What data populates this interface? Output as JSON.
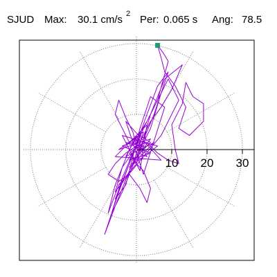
{
  "header": {
    "station": "SJUD",
    "max_label": "Max:",
    "max_value": "30.1 cm/s",
    "max_exponent": "2",
    "per_label": "Per:",
    "per_value": "0.065 s",
    "ang_label": "Ang:",
    "ang_value": "78.5"
  },
  "chart_data": {
    "type": "polar-orbit",
    "title": "SJUD Max: 30.1 cm/s2 Per: 0.065 s Ang: 78.5",
    "radial_ticks": [
      10,
      20,
      30
    ],
    "radial_tick_labels": [
      "10",
      "20",
      "30"
    ],
    "rmax": 32,
    "spoke_interval_deg": 30,
    "grid": true,
    "series_color": "#9400D3",
    "marker_color": "#1A9E6E",
    "max_point": {
      "x": 6.0,
      "y": 29.5
    },
    "trace": [
      [
        -1,
        0
      ],
      [
        2,
        1
      ],
      [
        -3,
        2
      ],
      [
        4,
        -1
      ],
      [
        -2,
        -3
      ],
      [
        1,
        3
      ],
      [
        -4,
        1
      ],
      [
        3,
        -2
      ],
      [
        0,
        4
      ],
      [
        -3,
        -2
      ],
      [
        5,
        2
      ],
      [
        -1,
        -4
      ],
      [
        2,
        5
      ],
      [
        -5,
        0
      ],
      [
        4,
        3
      ],
      [
        -2,
        -5
      ],
      [
        6,
        1
      ],
      [
        -4,
        4
      ],
      [
        1,
        -6
      ],
      [
        3,
        7
      ],
      [
        -6,
        -2
      ],
      [
        7,
        -3
      ],
      [
        -3,
        8
      ],
      [
        2,
        -7
      ],
      [
        8,
        12
      ],
      [
        4,
        15
      ],
      [
        1,
        6
      ],
      [
        -3,
        -10
      ],
      [
        -6,
        -14
      ],
      [
        -2,
        -4
      ],
      [
        3,
        10
      ],
      [
        6,
        18
      ],
      [
        9,
        22
      ],
      [
        5,
        10
      ],
      [
        0,
        -2
      ],
      [
        -4,
        -12
      ],
      [
        -7,
        -18
      ],
      [
        -4,
        -8
      ],
      [
        2,
        6
      ],
      [
        7,
        16
      ],
      [
        4,
        6
      ],
      [
        -2,
        -6
      ],
      [
        -6,
        -16
      ],
      [
        -9,
        -24
      ],
      [
        -5,
        -12
      ],
      [
        1,
        4
      ],
      [
        6,
        14
      ],
      [
        9,
        20
      ],
      [
        12,
        14
      ],
      [
        7,
        4
      ],
      [
        2,
        -2
      ],
      [
        -3,
        -8
      ],
      [
        -6,
        -12
      ],
      [
        -4,
        -5
      ],
      [
        1,
        2
      ],
      [
        4,
        8
      ],
      [
        7,
        12
      ],
      [
        10,
        17
      ],
      [
        13,
        24
      ],
      [
        8,
        20
      ],
      [
        4,
        10
      ],
      [
        0,
        -4
      ],
      [
        -5,
        -10
      ],
      [
        -8,
        -18
      ],
      [
        -6,
        -10
      ],
      [
        -2,
        0
      ],
      [
        3,
        8
      ],
      [
        6,
        14
      ],
      [
        9,
        25
      ],
      [
        7.5,
        27.5
      ],
      [
        6,
        29.5
      ],
      [
        7,
        26
      ],
      [
        8,
        22
      ],
      [
        11,
        18
      ],
      [
        14,
        12
      ],
      [
        12,
        6
      ],
      [
        15,
        4
      ],
      [
        19,
        8
      ],
      [
        19,
        13
      ],
      [
        16,
        15
      ],
      [
        14,
        19
      ],
      [
        13,
        13
      ],
      [
        10,
        7
      ],
      [
        11,
        0
      ],
      [
        12,
        -4
      ],
      [
        9,
        -3
      ],
      [
        6,
        -1
      ],
      [
        3,
        2
      ],
      [
        0,
        1
      ],
      [
        -3,
        -1
      ],
      [
        -6,
        -4
      ],
      [
        -8,
        -7
      ],
      [
        -5,
        -9
      ],
      [
        -2,
        -7
      ],
      [
        1,
        -11
      ],
      [
        3,
        -15
      ],
      [
        4,
        -11
      ],
      [
        2,
        -6
      ],
      [
        -1,
        -3
      ],
      [
        2,
        0
      ],
      [
        4,
        2
      ],
      [
        1,
        4
      ],
      [
        -2,
        2
      ],
      [
        -4,
        6
      ],
      [
        -6,
        10
      ],
      [
        -5,
        14
      ],
      [
        -3,
        9
      ],
      [
        -1,
        5
      ],
      [
        0,
        1
      ],
      [
        2,
        -1
      ],
      [
        0,
        -3
      ],
      [
        -2,
        -1
      ],
      [
        1,
        1
      ],
      [
        -1,
        2
      ],
      [
        2,
        0
      ]
    ]
  }
}
